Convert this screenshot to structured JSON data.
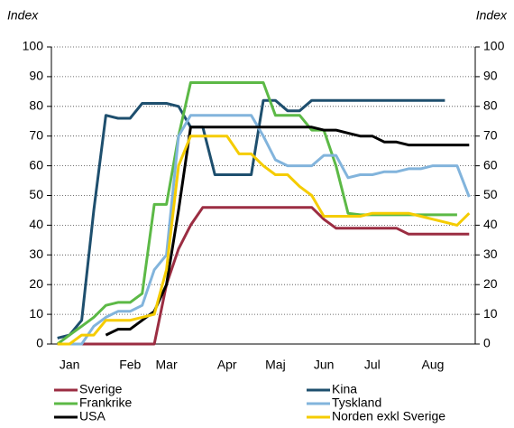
{
  "chart_data": {
    "type": "line",
    "y_label": "Index",
    "y2_label": "Index",
    "categories": [
      null,
      "Jan",
      null,
      null,
      null,
      null,
      "Feb",
      null,
      null,
      "Mar",
      null,
      null,
      null,
      null,
      "Apr",
      null,
      null,
      null,
      "Maj",
      null,
      null,
      null,
      "Jun",
      null,
      null,
      null,
      "Jul",
      null,
      null,
      null,
      null,
      "Aug",
      null,
      null,
      null
    ],
    "series": [
      {
        "name": "Sverige",
        "color": "#9b2d42",
        "values": [
          0,
          0,
          0,
          0,
          0,
          0,
          0,
          0,
          0,
          20,
          32,
          40,
          46,
          46,
          46,
          46,
          46,
          46,
          46,
          46,
          46,
          46,
          42,
          39,
          39,
          39,
          39,
          39,
          39,
          37,
          37,
          37,
          37,
          37,
          37
        ]
      },
      {
        "name": "Kina",
        "color": "#1e4f6e",
        "values": [
          2,
          3,
          8,
          45,
          77,
          76,
          76,
          81,
          81,
          81,
          80,
          73,
          73,
          57,
          57,
          57,
          57,
          82,
          82,
          78.5,
          78.5,
          82,
          82,
          82,
          82,
          82,
          82,
          82,
          82,
          82,
          82,
          82,
          82,
          null,
          null
        ]
      },
      {
        "name": "Frankrike",
        "color": "#5cb946",
        "values": [
          0,
          3,
          6,
          9,
          13,
          14,
          14,
          17,
          47,
          47,
          70,
          88,
          88,
          88,
          88,
          88,
          88,
          88,
          77,
          77,
          77,
          72,
          72,
          60,
          44,
          43.5,
          43.5,
          43.5,
          43.5,
          43.5,
          43.5,
          43.5,
          43.5,
          43.5,
          null
        ]
      },
      {
        "name": "Tyskland",
        "color": "#82b4dc",
        "values": [
          0,
          0,
          0,
          6,
          9,
          11,
          11,
          13,
          25,
          30,
          70,
          77,
          77,
          77,
          77,
          77,
          77,
          70,
          62,
          60,
          60,
          60,
          63.5,
          63.5,
          56,
          57,
          57,
          58,
          58,
          59,
          59,
          60,
          60,
          60,
          49.5
        ]
      },
      {
        "name": "USA",
        "color": "#000000",
        "values": [
          null,
          null,
          null,
          null,
          3,
          5,
          5,
          8,
          11,
          20,
          45,
          73,
          73,
          73,
          73,
          73,
          73,
          73,
          73,
          73,
          73,
          73,
          72,
          72,
          71,
          70,
          70,
          68,
          68,
          67,
          67,
          67,
          67,
          67,
          67
        ]
      },
      {
        "name": "Norden exkl Sverige",
        "color": "#f5cc00",
        "values": [
          0,
          0,
          3,
          3,
          8,
          8,
          8,
          9,
          10,
          25,
          60,
          70,
          70,
          70,
          70,
          64,
          64,
          60,
          57,
          57,
          53,
          50,
          43,
          43,
          43,
          43,
          44,
          44,
          44,
          44,
          43,
          42,
          41,
          40,
          44
        ]
      }
    ],
    "ylim": [
      0,
      100
    ],
    "yticks": [
      0,
      10,
      20,
      30,
      40,
      50,
      60,
      70,
      80,
      90,
      100
    ],
    "y2lim": [
      0,
      100
    ],
    "y2ticks": [
      0,
      10,
      20,
      30,
      40,
      50,
      60,
      70,
      80,
      90,
      100
    ],
    "grid": true
  }
}
